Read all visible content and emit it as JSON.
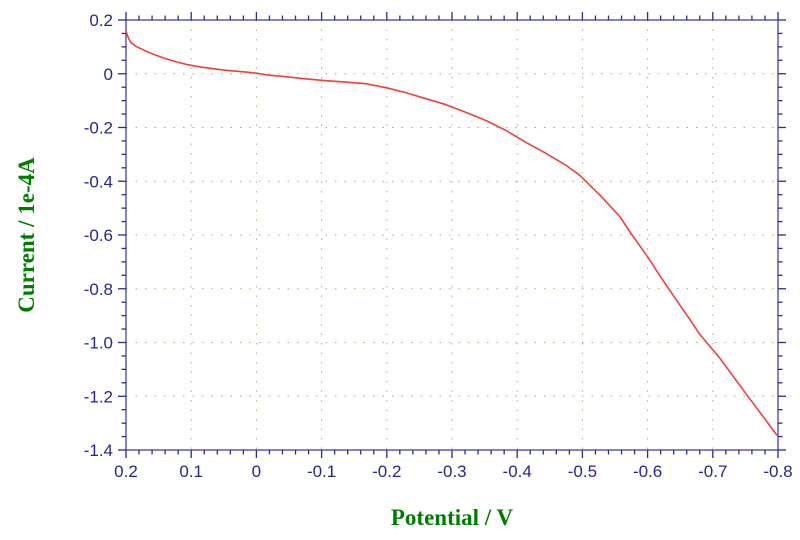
{
  "colors": {
    "background": "#ffffff",
    "axis_line": "#4040a8",
    "tick": "#2a2a96",
    "tick_label": "#26268e",
    "axis_title": "#007c00",
    "grid": "#b0ad6c",
    "curve": "#ee4040"
  },
  "chart_data": {
    "type": "line",
    "title": "",
    "xlabel": "Potential / V",
    "ylabel": "Current / 1e-4A",
    "grid": "dotted lines at major ticks, both directions",
    "legend": "none",
    "x_axis": {
      "range": [
        0.2,
        -0.8
      ],
      "reversed": true,
      "major_ticks": [
        0.2,
        0.1,
        0,
        -0.1,
        -0.2,
        -0.3,
        -0.4,
        -0.5,
        -0.6,
        -0.7,
        -0.8
      ],
      "major_tick_labels": [
        "0.2",
        "0.1",
        "0",
        "-0.1",
        "-0.2",
        "-0.3",
        "-0.4",
        "-0.5",
        "-0.6",
        "-0.7",
        "-0.8"
      ],
      "minors_between_majors": 4
    },
    "y_axis": {
      "range": [
        0.2,
        -1.4
      ],
      "major_ticks": [
        0.2,
        0,
        -0.2,
        -0.4,
        -0.6,
        -0.8,
        -1.0,
        -1.2,
        -1.4
      ],
      "major_tick_labels": [
        "0.2",
        "0",
        "-0.2",
        "-0.4",
        "-0.6",
        "-0.8",
        "-1.0",
        "-1.2",
        "-1.4"
      ],
      "minors_between_majors": 3
    },
    "series": [
      {
        "name": "current-vs-potential-curve",
        "color": "#ee4040",
        "points": [
          [
            0.2,
            0.159
          ],
          [
            0.196,
            0.131
          ],
          [
            0.192,
            0.115
          ],
          [
            0.185,
            0.102
          ],
          [
            0.169,
            0.084
          ],
          [
            0.154,
            0.069
          ],
          [
            0.139,
            0.056
          ],
          [
            0.123,
            0.044
          ],
          [
            0.108,
            0.035
          ],
          [
            0.093,
            0.028
          ],
          [
            0.077,
            0.022
          ],
          [
            0.047,
            0.013
          ],
          [
            0.016,
            0.006
          ],
          [
            0.0,
            0.002
          ],
          [
            -0.015,
            -0.004
          ],
          [
            -0.045,
            -0.011
          ],
          [
            -0.076,
            -0.019
          ],
          [
            -0.107,
            -0.026
          ],
          [
            -0.137,
            -0.031
          ],
          [
            -0.168,
            -0.037
          ],
          [
            -0.199,
            -0.052
          ],
          [
            -0.229,
            -0.07
          ],
          [
            -0.26,
            -0.093
          ],
          [
            -0.291,
            -0.115
          ],
          [
            -0.322,
            -0.144
          ],
          [
            -0.352,
            -0.174
          ],
          [
            -0.383,
            -0.211
          ],
          [
            -0.414,
            -0.256
          ],
          [
            -0.444,
            -0.296
          ],
          [
            -0.475,
            -0.341
          ],
          [
            -0.496,
            -0.378
          ],
          [
            -0.527,
            -0.452
          ],
          [
            -0.558,
            -0.533
          ],
          [
            -0.573,
            -0.589
          ],
          [
            -0.601,
            -0.685
          ],
          [
            -0.619,
            -0.752
          ],
          [
            -0.65,
            -0.863
          ],
          [
            -0.665,
            -0.915
          ],
          [
            -0.68,
            -0.97
          ],
          [
            -0.711,
            -1.059
          ],
          [
            -0.734,
            -1.135
          ],
          [
            -0.757,
            -1.211
          ],
          [
            -0.78,
            -1.285
          ],
          [
            -0.798,
            -1.344
          ]
        ]
      }
    ]
  }
}
